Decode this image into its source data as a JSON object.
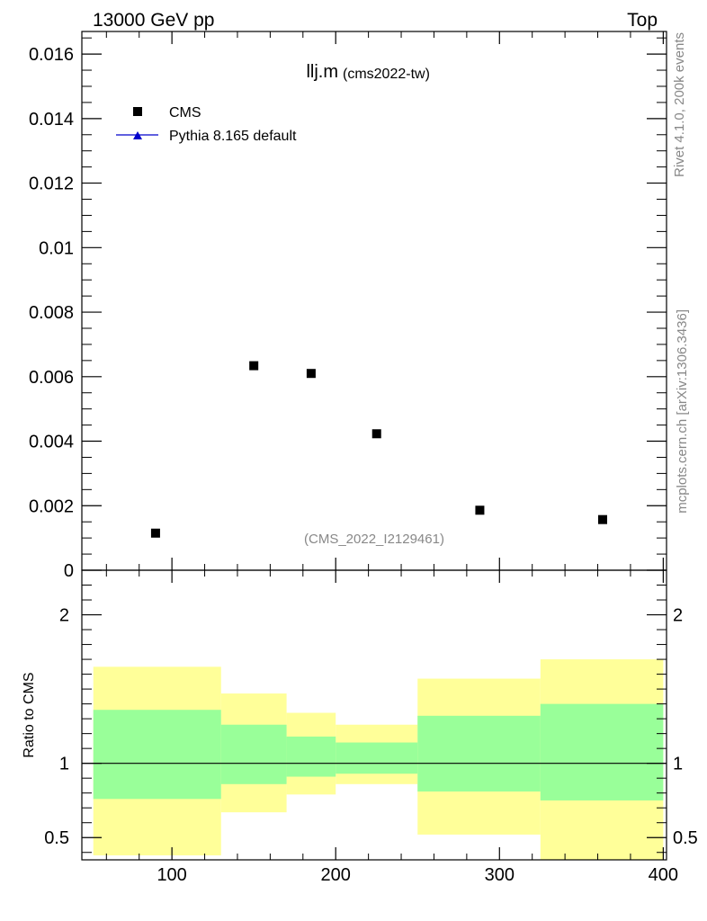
{
  "header": {
    "energy_label": "13000 GeV pp",
    "process_label": "Top"
  },
  "side_labels": {
    "rivet": "Rivet 4.1.0,  200k events",
    "mcplots": "mcplots.cern.ch [arXiv:1306.3436]"
  },
  "chart_data": [
    {
      "type": "scatter",
      "title": "llj.m",
      "subtitle": "(cms2022-tw)",
      "watermark": "(CMS_2022_I2129461)",
      "xlim": [
        45,
        402
      ],
      "ylim": [
        0,
        0.0167
      ],
      "yticks": [
        0,
        0.002,
        0.004,
        0.006,
        0.008,
        0.01,
        0.012,
        0.014,
        0.016
      ],
      "ytick_labels": [
        "0",
        "0.002",
        "0.004",
        "0.006",
        "0.008",
        "0.01",
        "0.012",
        "0.014",
        "0.016"
      ],
      "legend": {
        "position": "top-left",
        "entries": [
          {
            "label": "CMS",
            "marker": "square",
            "color": "#000000"
          },
          {
            "label": "Pythia 8.165 default",
            "marker": "triangle",
            "color": "#0000cc"
          }
        ]
      },
      "series": [
        {
          "name": "CMS",
          "x": [
            90,
            150,
            185,
            225,
            288,
            363
          ],
          "y": [
            0.00115,
            0.00634,
            0.0061,
            0.00423,
            0.00186,
            0.00157
          ]
        }
      ]
    },
    {
      "type": "area",
      "ylabel": "Ratio to CMS",
      "xlim": [
        45,
        402
      ],
      "ylim": [
        0.35,
        2.3
      ],
      "xticks": [
        100,
        200,
        300,
        400
      ],
      "xtick_labels": [
        "100",
        "200",
        "300",
        "400"
      ],
      "yticks": [
        0.5,
        1,
        2
      ],
      "ytick_labels": [
        "0.5",
        "1",
        "2"
      ],
      "reference_line": 1,
      "bins": [
        {
          "x0": 52,
          "x1": 130,
          "inner": [
            0.76,
            1.36
          ],
          "outer": [
            0.38,
            1.65
          ]
        },
        {
          "x0": 130,
          "x1": 170,
          "inner": [
            0.86,
            1.26
          ],
          "outer": [
            0.67,
            1.47
          ]
        },
        {
          "x0": 170,
          "x1": 200,
          "inner": [
            0.91,
            1.18
          ],
          "outer": [
            0.79,
            1.34
          ]
        },
        {
          "x0": 200,
          "x1": 250,
          "inner": [
            0.93,
            1.14
          ],
          "outer": [
            0.86,
            1.26
          ]
        },
        {
          "x0": 250,
          "x1": 325,
          "inner": [
            0.81,
            1.32
          ],
          "outer": [
            0.52,
            1.57
          ]
        },
        {
          "x0": 325,
          "x1": 400,
          "inner": [
            0.75,
            1.4
          ],
          "outer": [
            0.3,
            1.7
          ]
        }
      ],
      "band_colors": {
        "inner": "#99ff99",
        "outer": "#ffff99"
      }
    }
  ]
}
